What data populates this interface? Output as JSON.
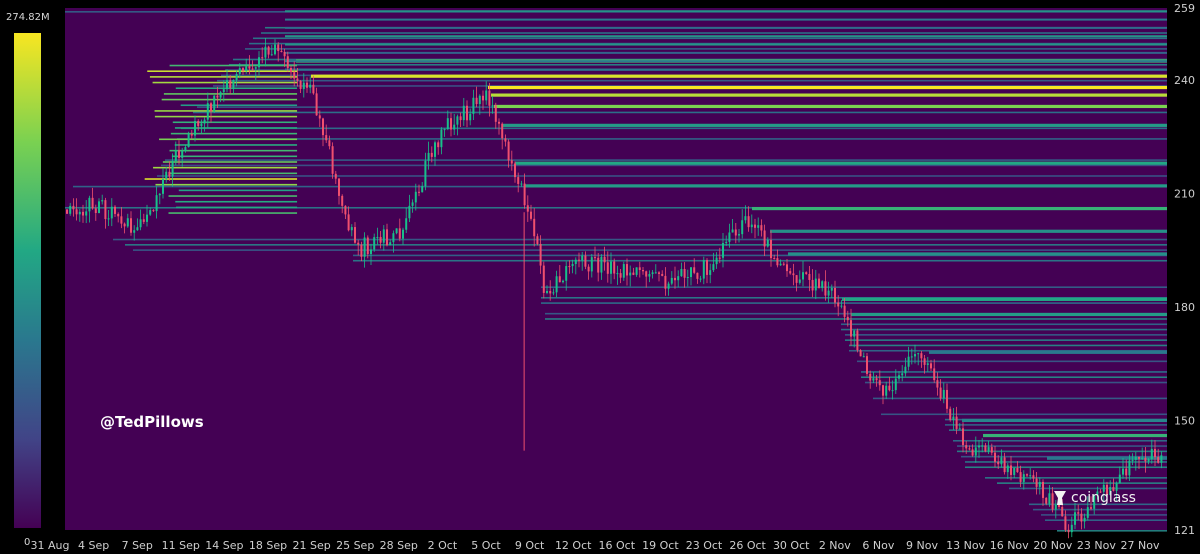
{
  "colorbar": {
    "max_label": "274.82M",
    "min_label": "0",
    "stops": [
      "#440154",
      "#414487",
      "#2a788e",
      "#22a884",
      "#7ad151",
      "#f8e621"
    ]
  },
  "watermark": "@TedPillows",
  "brand": {
    "label": "coinglass",
    "icon": "coinglass-logo-icon"
  },
  "chart_data": {
    "type": "heatmap",
    "title": "",
    "xlabel": "",
    "ylabel": "",
    "ylim": [
      121,
      259
    ],
    "y_ticks": [
      259,
      240,
      210,
      180,
      150,
      121
    ],
    "x_tick_labels": [
      "31 Aug",
      "4 Sep",
      "7 Sep",
      "11 Sep",
      "14 Sep",
      "18 Sep",
      "21 Sep",
      "25 Sep",
      "28 Sep",
      "2 Oct",
      "5 Oct",
      "9 Oct",
      "12 Oct",
      "16 Oct",
      "19 Oct",
      "23 Oct",
      "26 Oct",
      "30 Oct",
      "2 Nov",
      "6 Nov",
      "9 Nov",
      "13 Nov",
      "16 Nov",
      "20 Nov",
      "23 Nov",
      "27 Nov"
    ],
    "overlay": "candlestick",
    "price_path": [
      [
        "31 Aug",
        205
      ],
      [
        "4 Sep",
        207
      ],
      [
        "7 Sep",
        200
      ],
      [
        "11 Sep",
        222
      ],
      [
        "14 Sep",
        238
      ],
      [
        "18 Sep",
        249
      ],
      [
        "21 Sep",
        236
      ],
      [
        "25 Sep",
        195
      ],
      [
        "28 Sep",
        200
      ],
      [
        "2 Oct",
        228
      ],
      [
        "5 Oct",
        235
      ],
      [
        "9 Oct",
        205
      ],
      [
        "10 Oct",
        182
      ],
      [
        "12 Oct",
        192
      ],
      [
        "16 Oct",
        190
      ],
      [
        "19 Oct",
        187
      ],
      [
        "23 Oct",
        190
      ],
      [
        "26 Oct",
        203
      ],
      [
        "30 Oct",
        188
      ],
      [
        "2 Nov",
        183
      ],
      [
        "6 Nov",
        157
      ],
      [
        "9 Nov",
        168
      ],
      [
        "13 Nov",
        143
      ],
      [
        "16 Nov",
        138
      ],
      [
        "20 Nov",
        128
      ],
      [
        "21 Nov",
        122
      ],
      [
        "23 Nov",
        130
      ],
      [
        "27 Nov",
        140
      ]
    ],
    "liquidation_bands": [
      {
        "price": 245,
        "intensity": 0.7
      },
      {
        "price": 241,
        "intensity": 0.95
      },
      {
        "price": 238,
        "intensity": 1.0
      },
      {
        "price": 236,
        "intensity": 0.9
      },
      {
        "price": 233,
        "intensity": 0.8
      },
      {
        "price": 228,
        "intensity": 0.55
      },
      {
        "price": 218,
        "intensity": 0.6
      },
      {
        "price": 212,
        "intensity": 0.55
      },
      {
        "price": 206,
        "intensity": 0.65
      },
      {
        "price": 200,
        "intensity": 0.5
      },
      {
        "price": 194,
        "intensity": 0.5
      },
      {
        "price": 182,
        "intensity": 0.6
      },
      {
        "price": 178,
        "intensity": 0.55
      },
      {
        "price": 168,
        "intensity": 0.4
      },
      {
        "price": 150,
        "intensity": 0.45
      },
      {
        "price": 146,
        "intensity": 0.65
      },
      {
        "price": 140,
        "intensity": 0.4
      }
    ],
    "early_cluster": {
      "from": "11 Sep",
      "to": "20 Sep",
      "low": 205,
      "high": 245
    }
  }
}
